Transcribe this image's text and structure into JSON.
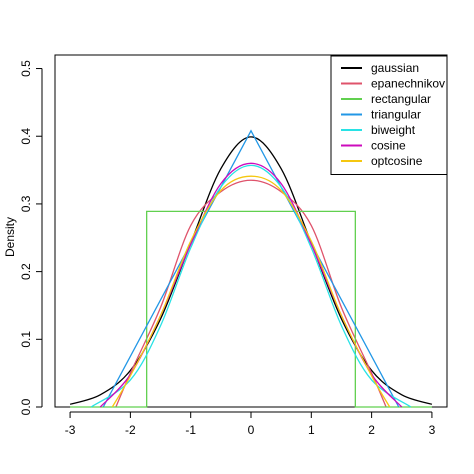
{
  "chart_data": {
    "type": "line",
    "title": "",
    "xlabel": "",
    "ylabel": "Density",
    "xlim": [
      -3.25,
      3.25
    ],
    "ylim": [
      0,
      0.52
    ],
    "x_ticks": [
      -3,
      -2,
      -1,
      0,
      1,
      2,
      3
    ],
    "x_tick_labels": [
      "-3",
      "-2",
      "-1",
      "0",
      "1",
      "2",
      "3"
    ],
    "y_ticks": [
      0.0,
      0.1,
      0.2,
      0.3,
      0.4,
      0.5
    ],
    "y_tick_labels": [
      "0.0",
      "0.1",
      "0.2",
      "0.3",
      "0.4",
      "0.5"
    ],
    "grid": false,
    "legend_position": "top-right",
    "series": [
      {
        "name": "gaussian",
        "color": "#000000",
        "x": [
          -3,
          -2.5,
          -2,
          -1.5,
          -1,
          -0.5,
          0,
          0.5,
          1,
          1.5,
          2,
          2.5,
          3
        ],
        "y": [
          0.004,
          0.018,
          0.054,
          0.13,
          0.242,
          0.352,
          0.399,
          0.352,
          0.242,
          0.13,
          0.054,
          0.018,
          0.004
        ]
      },
      {
        "name": "epanechnikov",
        "color": "#DF536B",
        "x": [
          -2.24,
          -2,
          -1.5,
          -1,
          -0.5,
          0,
          0.5,
          1,
          1.5,
          2,
          2.24
        ],
        "y": [
          0.0,
          0.05,
          0.147,
          0.268,
          0.318,
          0.335,
          0.318,
          0.268,
          0.147,
          0.05,
          0.0
        ]
      },
      {
        "name": "rectangular",
        "color": "#61D04F",
        "x": [
          -3,
          -1.73,
          -1.73,
          1.73,
          1.73,
          3
        ],
        "y": [
          0.0,
          0.0,
          0.289,
          0.289,
          0.0,
          0.0
        ]
      },
      {
        "name": "triangular",
        "color": "#2297E6",
        "x": [
          -2.45,
          0,
          2.45
        ],
        "y": [
          0.0,
          0.408,
          0.0
        ]
      },
      {
        "name": "biweight",
        "color": "#28E2E5",
        "x": [
          -2.65,
          -2,
          -1.5,
          -1,
          -0.5,
          0,
          0.5,
          1,
          1.5,
          2,
          2.65
        ],
        "y": [
          0.0,
          0.04,
          0.12,
          0.235,
          0.325,
          0.357,
          0.325,
          0.235,
          0.12,
          0.04,
          0.0
        ]
      },
      {
        "name": "cosine",
        "color": "#CD0BBC",
        "x": [
          -2.5,
          -2,
          -1.5,
          -1,
          -0.5,
          0,
          0.5,
          1,
          1.5,
          2,
          2.5
        ],
        "y": [
          0.0,
          0.048,
          0.135,
          0.24,
          0.33,
          0.36,
          0.33,
          0.24,
          0.135,
          0.048,
          0.0
        ]
      },
      {
        "name": "optcosine",
        "color": "#F5C710",
        "x": [
          -2.3,
          -2,
          -1.5,
          -1,
          -0.5,
          0,
          0.5,
          1,
          1.5,
          2,
          2.3
        ],
        "y": [
          0.0,
          0.046,
          0.135,
          0.245,
          0.32,
          0.341,
          0.32,
          0.245,
          0.135,
          0.046,
          0.0
        ]
      }
    ]
  }
}
